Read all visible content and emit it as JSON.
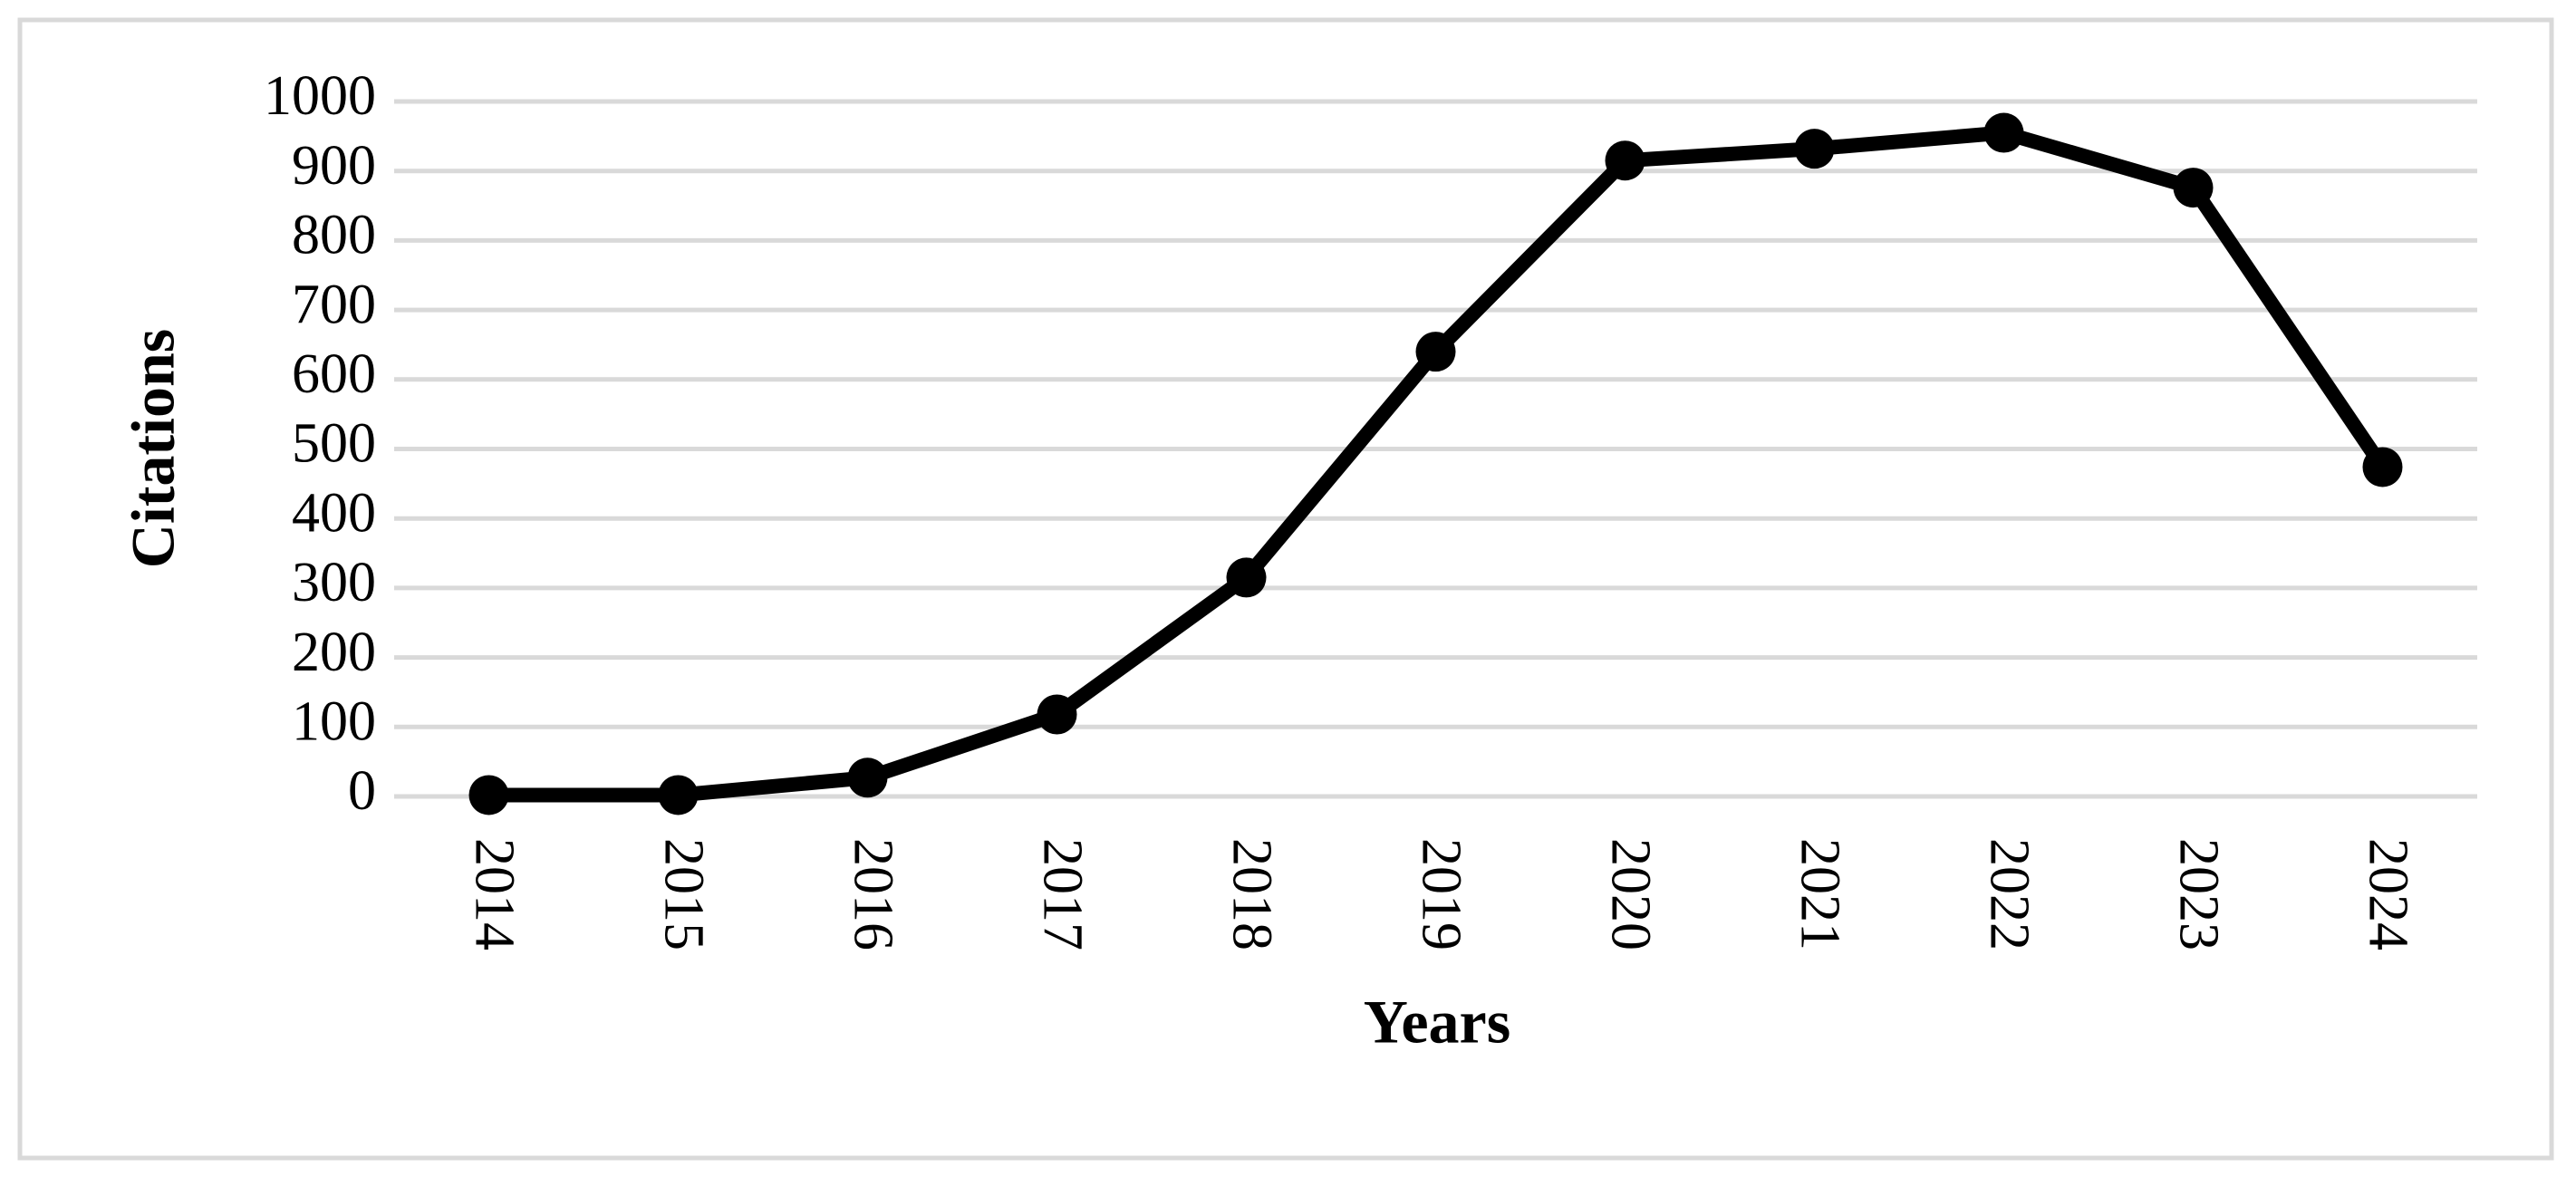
{
  "chart_data": {
    "type": "line",
    "x_label": "Years",
    "y_label": "Citations",
    "categories": [
      "2014",
      "2015",
      "2016",
      "2017",
      "2018",
      "2019",
      "2020",
      "2021",
      "2022",
      "2023",
      "2024"
    ],
    "series": [
      {
        "name": "Citations",
        "color": "#000000",
        "values": [
          2,
          2,
          27,
          118,
          315,
          640,
          915,
          932,
          955,
          876,
          474
        ]
      }
    ],
    "ylim": [
      0,
      1000
    ],
    "yticks": [
      0,
      100,
      200,
      300,
      400,
      500,
      600,
      700,
      800,
      900,
      1000
    ],
    "grid": true,
    "markers": true
  }
}
